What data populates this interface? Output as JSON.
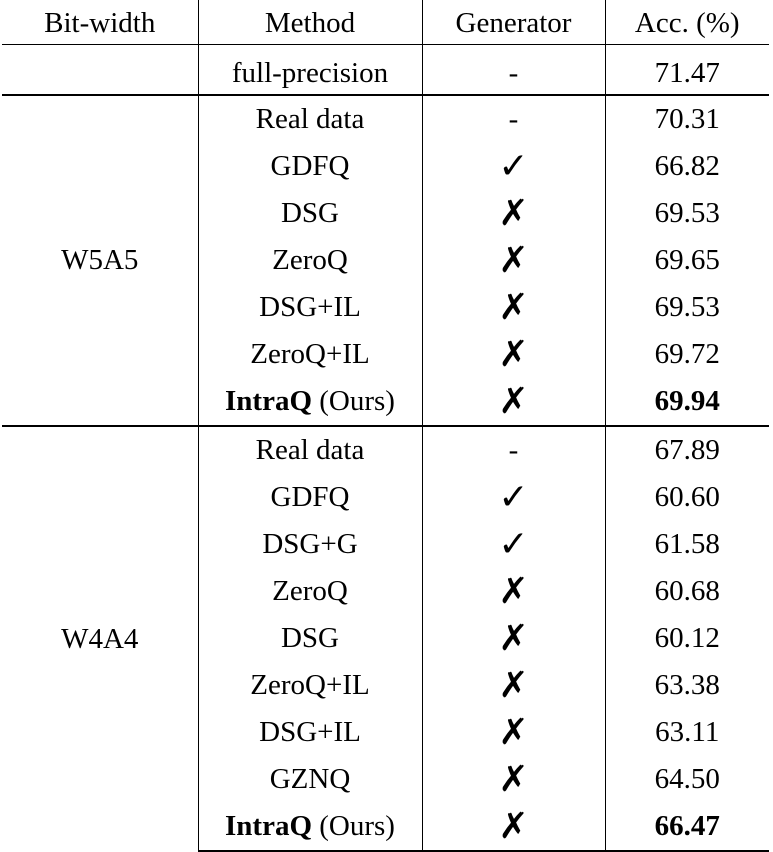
{
  "table": {
    "headers": {
      "bit_width": "Bit-width",
      "method": "Method",
      "generator": "Generator",
      "accuracy": "Acc. (%)"
    },
    "full_precision": {
      "method": "full-precision",
      "generator": "-",
      "accuracy": "71.47"
    },
    "groups": [
      {
        "bit_width": "W5A5",
        "rows": [
          {
            "method": "Real data",
            "method_bold": "",
            "method_rest": "",
            "generator": "-",
            "generator_icon": "none",
            "accuracy": "70.31",
            "bold": false
          },
          {
            "method": "GDFQ",
            "method_bold": "",
            "method_rest": "",
            "generator": "✓",
            "generator_icon": "check-icon",
            "accuracy": "66.82",
            "bold": false
          },
          {
            "method": "DSG",
            "method_bold": "",
            "method_rest": "",
            "generator": "✗",
            "generator_icon": "cross-icon",
            "accuracy": "69.53",
            "bold": false
          },
          {
            "method": "ZeroQ",
            "method_bold": "",
            "method_rest": "",
            "generator": "✗",
            "generator_icon": "cross-icon",
            "accuracy": "69.65",
            "bold": false
          },
          {
            "method": "DSG+IL",
            "method_bold": "",
            "method_rest": "",
            "generator": "✗",
            "generator_icon": "cross-icon",
            "accuracy": "69.53",
            "bold": false
          },
          {
            "method": "ZeroQ+IL",
            "method_bold": "",
            "method_rest": "",
            "generator": "✗",
            "generator_icon": "cross-icon",
            "accuracy": "69.72",
            "bold": false
          },
          {
            "method": "",
            "method_bold": "IntraQ",
            "method_rest": " (Ours)",
            "generator": "✗",
            "generator_icon": "cross-icon",
            "accuracy": "69.94",
            "bold": true
          }
        ]
      },
      {
        "bit_width": "W4A4",
        "rows": [
          {
            "method": "Real data",
            "method_bold": "",
            "method_rest": "",
            "generator": "-",
            "generator_icon": "none",
            "accuracy": "67.89",
            "bold": false
          },
          {
            "method": "GDFQ",
            "method_bold": "",
            "method_rest": "",
            "generator": "✓",
            "generator_icon": "check-icon",
            "accuracy": "60.60",
            "bold": false
          },
          {
            "method": "DSG+G",
            "method_bold": "",
            "method_rest": "",
            "generator": "✓",
            "generator_icon": "check-icon",
            "accuracy": "61.58",
            "bold": false
          },
          {
            "method": "ZeroQ",
            "method_bold": "",
            "method_rest": "",
            "generator": "✗",
            "generator_icon": "cross-icon",
            "accuracy": "60.68",
            "bold": false
          },
          {
            "method": "DSG",
            "method_bold": "",
            "method_rest": "",
            "generator": "✗",
            "generator_icon": "cross-icon",
            "accuracy": "60.12",
            "bold": false
          },
          {
            "method": "ZeroQ+IL",
            "method_bold": "",
            "method_rest": "",
            "generator": "✗",
            "generator_icon": "cross-icon",
            "accuracy": "63.38",
            "bold": false
          },
          {
            "method": "DSG+IL",
            "method_bold": "",
            "method_rest": "",
            "generator": "✗",
            "generator_icon": "cross-icon",
            "accuracy": "63.11",
            "bold": false
          },
          {
            "method": "GZNQ",
            "method_bold": "",
            "method_rest": "",
            "generator": "✗",
            "generator_icon": "cross-icon",
            "accuracy": "64.50",
            "bold": false
          },
          {
            "method": "",
            "method_bold": "IntraQ",
            "method_rest": " (Ours)",
            "generator": "✗",
            "generator_icon": "cross-icon",
            "accuracy": "66.47",
            "bold": true
          }
        ]
      }
    ]
  }
}
